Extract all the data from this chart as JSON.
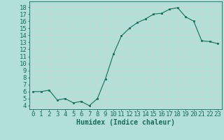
{
  "x": [
    0,
    1,
    2,
    3,
    4,
    5,
    6,
    7,
    8,
    9,
    10,
    11,
    12,
    13,
    14,
    15,
    16,
    17,
    18,
    19,
    20,
    21,
    22,
    23
  ],
  "y": [
    6.0,
    6.0,
    6.2,
    4.8,
    5.0,
    4.4,
    4.6,
    4.0,
    5.0,
    7.8,
    11.3,
    13.9,
    15.0,
    15.8,
    16.3,
    17.0,
    17.1,
    17.7,
    17.9,
    16.6,
    16.0,
    13.2,
    13.1,
    12.8
  ],
  "line_color": "#1a6b5a",
  "marker_color": "#1a6b5a",
  "bg_color": "#b2e0d8",
  "grid_color": "#c8d8d4",
  "xlabel": "Humidex (Indice chaleur)",
  "yticks": [
    4,
    5,
    6,
    7,
    8,
    9,
    10,
    11,
    12,
    13,
    14,
    15,
    16,
    17,
    18
  ],
  "ylim": [
    3.5,
    18.8
  ],
  "xlim": [
    -0.5,
    23.5
  ],
  "axis_color": "#1a6b5a",
  "label_fontsize": 7,
  "tick_fontsize": 6.5
}
